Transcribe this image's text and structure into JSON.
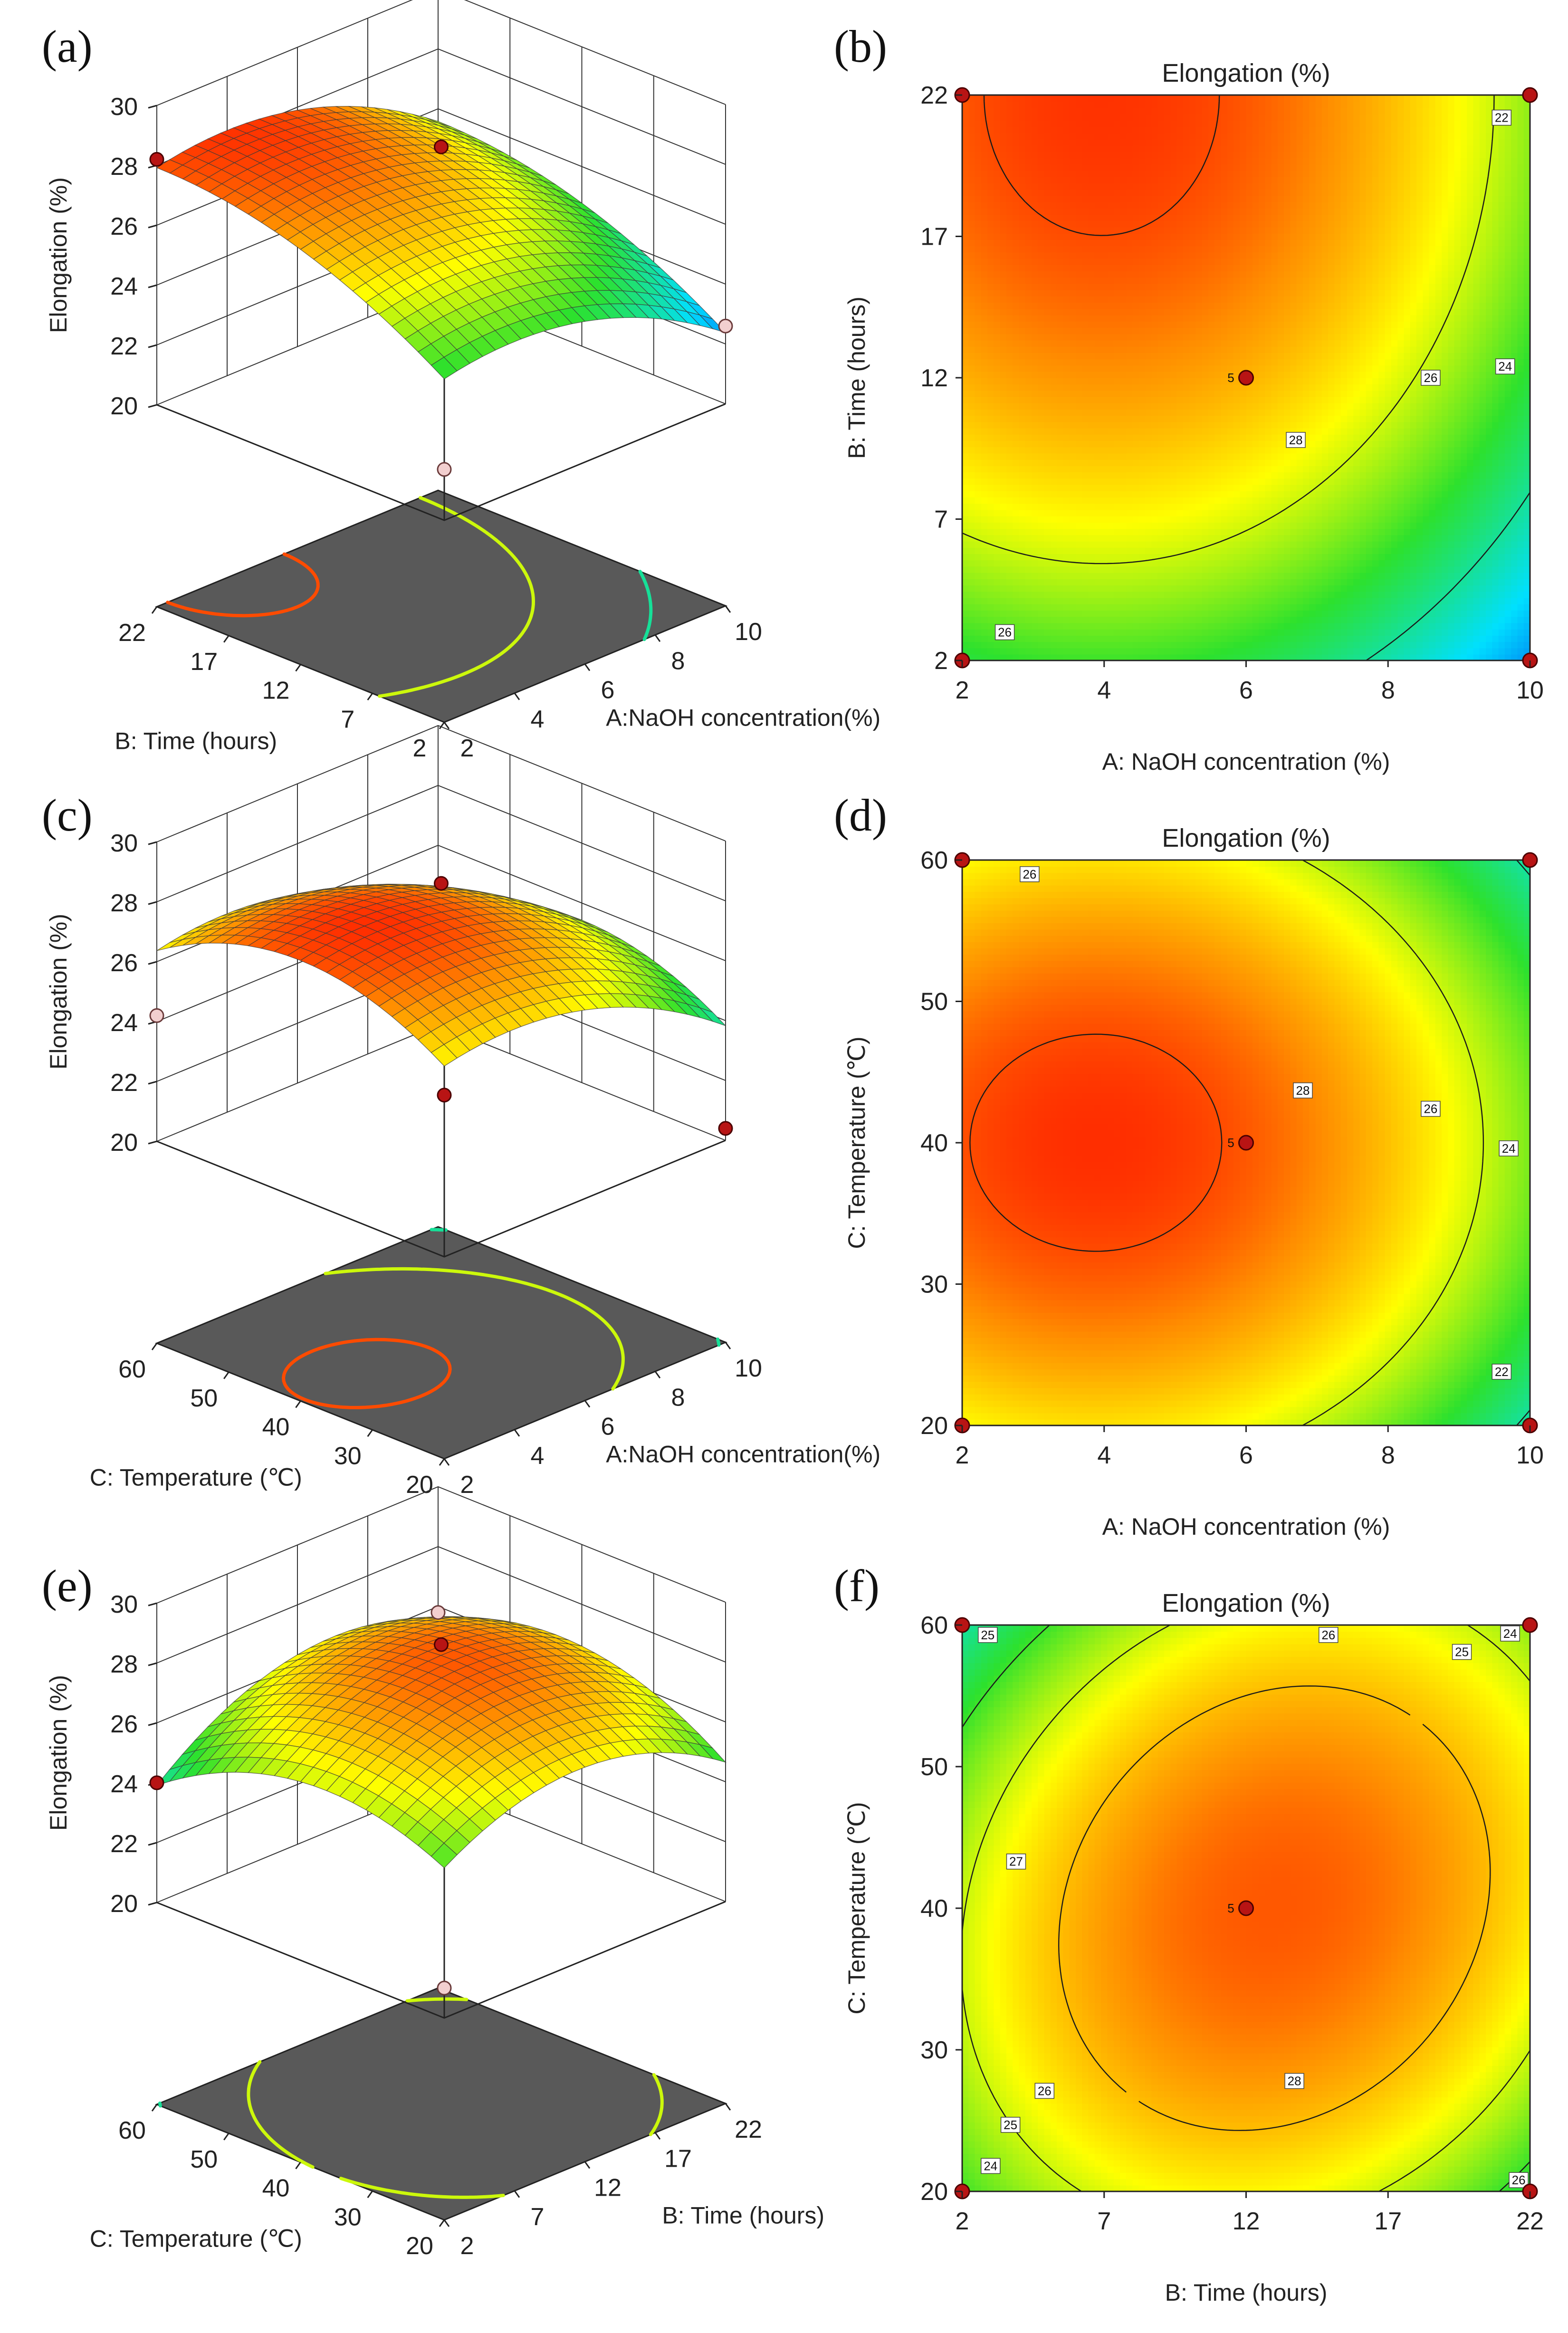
{
  "chart_data": [
    {
      "panel": "(a)",
      "type": "surface3d",
      "title": "",
      "xlabel": "A:NaOH concentration(%)",
      "ylabel": "B: Time (hours)",
      "zlabel": "Elongation (%)",
      "x_ticks": [
        "2",
        "4",
        "6",
        "8",
        "10"
      ],
      "y_ticks": [
        "2",
        "7",
        "12",
        "17",
        "22"
      ],
      "z_ticks": [
        "20",
        "22",
        "24",
        "26",
        "28",
        "30"
      ],
      "xlim": [
        2,
        10
      ],
      "ylim": [
        2,
        22
      ],
      "zlim": [
        20,
        30
      ],
      "model": {
        "a": 0,
        "b": 1,
        "c0": 27.9,
        "a1": -1.17,
        "b1": 0,
        "a2": -1.15,
        "b2": -0.8,
        "ab": 0
      },
      "points": [
        {
          "x": 6,
          "y": 12,
          "z": 28.6,
          "kind": "dark"
        },
        {
          "x": 2,
          "y": 22,
          "z": 28.2,
          "kind": "dark"
        },
        {
          "x": 10,
          "y": 2,
          "z": 22.6,
          "kind": "light"
        },
        {
          "x": 2,
          "y": 2,
          "z": 21.7,
          "kind": "light"
        }
      ]
    },
    {
      "panel": "(b)",
      "type": "contour",
      "title": "Elongation (%)",
      "xlabel": "A: NaOH concentration (%)",
      "ylabel": "B: Time (hours)",
      "x_ticks": [
        "2",
        "4",
        "6",
        "8",
        "10"
      ],
      "y_ticks": [
        "2",
        "7",
        "12",
        "17",
        "22"
      ],
      "xlim": [
        2,
        10
      ],
      "ylim": [
        2,
        22
      ],
      "model": {
        "a": 0,
        "b": 1,
        "c0": 27.9,
        "a1": -1.17,
        "b1": 0,
        "a2": -1.15,
        "b2": -0.8,
        "ab": 0
      },
      "levels": [
        22,
        24,
        26,
        28
      ],
      "contour_labels": [
        {
          "text": "22",
          "x": 9.6,
          "y": 21.2
        },
        {
          "text": "24",
          "x": 9.65,
          "y": 12.4
        },
        {
          "text": "26",
          "x": 8.6,
          "y": 12.0
        },
        {
          "text": "28",
          "x": 6.7,
          "y": 9.8
        },
        {
          "text": "26",
          "x": 2.6,
          "y": 3.0
        }
      ],
      "center_label": "5",
      "points": [
        {
          "x": 2,
          "y": 22
        },
        {
          "x": 10,
          "y": 22
        },
        {
          "x": 2,
          "y": 2
        },
        {
          "x": 10,
          "y": 2
        },
        {
          "x": 6,
          "y": 12
        }
      ]
    },
    {
      "panel": "(c)",
      "type": "surface3d",
      "title": "",
      "xlabel": "A:NaOH concentration(%)",
      "ylabel": "C: Temperature (℃)",
      "zlabel": "Elongation (%)",
      "x_ticks": [
        "2",
        "4",
        "6",
        "8",
        "10"
      ],
      "y_ticks": [
        "20",
        "30",
        "40",
        "50",
        "60"
      ],
      "z_ticks": [
        "20",
        "22",
        "24",
        "26",
        "28",
        "30"
      ],
      "xlim": [
        2,
        10
      ],
      "ylim": [
        20,
        60
      ],
      "zlim": [
        20,
        30
      ],
      "model": {
        "a": 0,
        "b": 0,
        "c0": 27.9,
        "a1": -1.27,
        "b1": 0,
        "a2": -1.2,
        "b2": -1.6,
        "ab": 0
      },
      "points": [
        {
          "x": 6,
          "y": 40,
          "z": 28.6,
          "kind": "dark"
        },
        {
          "x": 2,
          "y": 20,
          "z": 25.4,
          "kind": "dark"
        },
        {
          "x": 10,
          "y": 20,
          "z": 20.4,
          "kind": "dark"
        },
        {
          "x": 2,
          "y": 60,
          "z": 24.2,
          "kind": "light"
        }
      ]
    },
    {
      "panel": "(d)",
      "type": "contour",
      "title": "Elongation (%)",
      "xlabel": "A: NaOH concentration (%)",
      "ylabel": "C: Temperature (℃)",
      "x_ticks": [
        "2",
        "4",
        "6",
        "8",
        "10"
      ],
      "y_ticks": [
        "20",
        "30",
        "40",
        "50",
        "60"
      ],
      "xlim": [
        2,
        10
      ],
      "ylim": [
        20,
        60
      ],
      "model": {
        "a": 0,
        "b": 0,
        "c0": 27.9,
        "a1": -1.27,
        "b1": 0,
        "a2": -1.2,
        "b2": -1.6,
        "ab": 0
      },
      "levels": [
        22,
        24,
        26,
        28
      ],
      "contour_labels": [
        {
          "text": "26",
          "x": 2.95,
          "y": 59.0
        },
        {
          "text": "28",
          "x": 6.8,
          "y": 43.7
        },
        {
          "text": "26",
          "x": 8.6,
          "y": 42.4
        },
        {
          "text": "24",
          "x": 9.7,
          "y": 39.6
        },
        {
          "text": "22",
          "x": 9.6,
          "y": 23.8
        }
      ],
      "center_label": "5",
      "points": [
        {
          "x": 2,
          "y": 60
        },
        {
          "x": 10,
          "y": 60
        },
        {
          "x": 2,
          "y": 20
        },
        {
          "x": 10,
          "y": 20
        },
        {
          "x": 6,
          "y": 40
        }
      ]
    },
    {
      "panel": "(e)",
      "type": "surface3d",
      "title": "",
      "xlabel": "B: Time (hours)",
      "ylabel": "C: Temperature (℃)",
      "zlabel": "Elongation (%)",
      "x_ticks": [
        "2",
        "7",
        "12",
        "17",
        "22"
      ],
      "y_ticks": [
        "20",
        "30",
        "40",
        "50",
        "60"
      ],
      "z_ticks": [
        "20",
        "22",
        "24",
        "26",
        "28",
        "30"
      ],
      "xlim": [
        2,
        22
      ],
      "ylim": [
        20,
        60
      ],
      "zlim": [
        20,
        30
      ],
      "model": {
        "a": 0.1,
        "b": 0,
        "c0": 27.9,
        "a1": 0,
        "b1": 0,
        "a2": -1.6,
        "b2": -1.5,
        "ab": 0.5
      },
      "points": [
        {
          "x": 12,
          "y": 40,
          "z": 28.6,
          "kind": "dark"
        },
        {
          "x": 22,
          "y": 60,
          "z": 25.8,
          "kind": "light"
        },
        {
          "x": 2,
          "y": 20,
          "z": 21.0,
          "kind": "light"
        },
        {
          "x": 2,
          "y": 60,
          "z": 24.0,
          "kind": "dark"
        }
      ]
    },
    {
      "panel": "(f)",
      "type": "contour",
      "title": "Elongation (%)",
      "xlabel": "B: Time (hours)",
      "ylabel": "C: Temperature (℃)",
      "x_ticks": [
        "2",
        "7",
        "12",
        "17",
        "22"
      ],
      "y_ticks": [
        "20",
        "30",
        "40",
        "50",
        "60"
      ],
      "xlim": [
        2,
        22
      ],
      "ylim": [
        20,
        60
      ],
      "model": {
        "a": 0.1,
        "b": 0,
        "c0": 27.9,
        "a1": 0,
        "b1": 0,
        "a2": -1.6,
        "b2": -1.5,
        "ab": 0.5
      },
      "levels": [
        24,
        25,
        26,
        27,
        28
      ],
      "contour_labels": [
        {
          "text": "25",
          "x": 2.9,
          "y": 59.3
        },
        {
          "text": "26",
          "x": 14.9,
          "y": 59.3
        },
        {
          "text": "25",
          "x": 19.6,
          "y": 58.1
        },
        {
          "text": "24",
          "x": 21.3,
          "y": 59.4
        },
        {
          "text": "27",
          "x": 3.9,
          "y": 43.3
        },
        {
          "text": "28",
          "x": 13.7,
          "y": 27.8
        },
        {
          "text": "26",
          "x": 4.9,
          "y": 27.1
        },
        {
          "text": "25",
          "x": 3.7,
          "y": 24.7
        },
        {
          "text": "24",
          "x": 3.0,
          "y": 21.8
        },
        {
          "text": "26",
          "x": 21.6,
          "y": 20.8
        }
      ],
      "center_label": "5",
      "points": [
        {
          "x": 2,
          "y": 60
        },
        {
          "x": 22,
          "y": 60
        },
        {
          "x": 2,
          "y": 20
        },
        {
          "x": 22,
          "y": 20
        },
        {
          "x": 12,
          "y": 40
        }
      ]
    }
  ]
}
